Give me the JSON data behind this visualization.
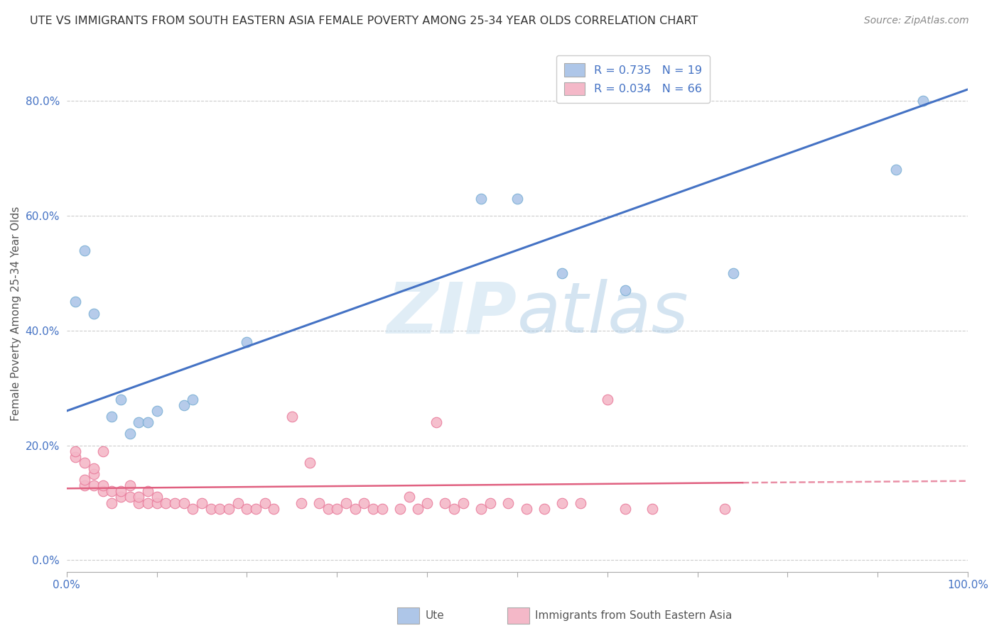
{
  "title": "UTE VS IMMIGRANTS FROM SOUTH EASTERN ASIA FEMALE POVERTY AMONG 25-34 YEAR OLDS CORRELATION CHART",
  "source": "Source: ZipAtlas.com",
  "ylabel": "Female Poverty Among 25-34 Year Olds",
  "xlabel": "",
  "xlim": [
    0,
    1.0
  ],
  "ylim": [
    -0.02,
    0.88
  ],
  "background_color": "#ffffff",
  "watermark": "ZIPatlas",
  "ute_scatter_x": [
    0.01,
    0.02,
    0.03,
    0.05,
    0.06,
    0.07,
    0.08,
    0.09,
    0.1,
    0.13,
    0.14,
    0.2,
    0.46,
    0.5,
    0.55,
    0.62,
    0.74,
    0.92,
    0.95
  ],
  "ute_scatter_y": [
    0.45,
    0.54,
    0.43,
    0.25,
    0.28,
    0.22,
    0.24,
    0.24,
    0.26,
    0.27,
    0.28,
    0.38,
    0.63,
    0.63,
    0.5,
    0.47,
    0.5,
    0.68,
    0.8
  ],
  "immig_scatter_x": [
    0.01,
    0.01,
    0.02,
    0.02,
    0.02,
    0.03,
    0.03,
    0.03,
    0.04,
    0.04,
    0.04,
    0.05,
    0.05,
    0.06,
    0.06,
    0.07,
    0.07,
    0.08,
    0.08,
    0.09,
    0.09,
    0.1,
    0.1,
    0.11,
    0.12,
    0.13,
    0.14,
    0.15,
    0.16,
    0.17,
    0.18,
    0.19,
    0.2,
    0.21,
    0.22,
    0.23,
    0.25,
    0.26,
    0.27,
    0.28,
    0.29,
    0.3,
    0.31,
    0.32,
    0.33,
    0.34,
    0.35,
    0.37,
    0.38,
    0.39,
    0.4,
    0.41,
    0.42,
    0.43,
    0.44,
    0.46,
    0.47,
    0.49,
    0.51,
    0.53,
    0.55,
    0.57,
    0.6,
    0.62,
    0.65,
    0.73
  ],
  "immig_scatter_y": [
    0.18,
    0.19,
    0.13,
    0.14,
    0.17,
    0.13,
    0.15,
    0.16,
    0.12,
    0.13,
    0.19,
    0.1,
    0.12,
    0.11,
    0.12,
    0.11,
    0.13,
    0.1,
    0.11,
    0.1,
    0.12,
    0.1,
    0.11,
    0.1,
    0.1,
    0.1,
    0.09,
    0.1,
    0.09,
    0.09,
    0.09,
    0.1,
    0.09,
    0.09,
    0.1,
    0.09,
    0.25,
    0.1,
    0.17,
    0.1,
    0.09,
    0.09,
    0.1,
    0.09,
    0.1,
    0.09,
    0.09,
    0.09,
    0.11,
    0.09,
    0.1,
    0.24,
    0.1,
    0.09,
    0.1,
    0.09,
    0.1,
    0.1,
    0.09,
    0.09,
    0.1,
    0.1,
    0.28,
    0.09,
    0.09,
    0.09
  ],
  "ute_color": "#aec6e8",
  "ute_edge_color": "#7aafd4",
  "immig_color": "#f4b8c8",
  "immig_edge_color": "#e87a9a",
  "ute_line_color": "#4472c4",
  "immig_line_color": "#e06080",
  "grid_color": "#cccccc",
  "tick_label_color": "#4472c4",
  "ytick_labels": [
    "0.0%",
    "20.0%",
    "40.0%",
    "60.0%",
    "80.0%"
  ],
  "ytick_values": [
    0.0,
    0.2,
    0.4,
    0.6,
    0.8
  ],
  "xtick_values": [
    0.0,
    0.1,
    0.2,
    0.3,
    0.4,
    0.5,
    0.6,
    0.7,
    0.8,
    0.9,
    1.0
  ],
  "ute_line_x": [
    0.0,
    1.0
  ],
  "ute_line_y": [
    0.26,
    0.82
  ],
  "immig_line_x": [
    0.0,
    0.75
  ],
  "immig_line_y": [
    0.125,
    0.135
  ]
}
